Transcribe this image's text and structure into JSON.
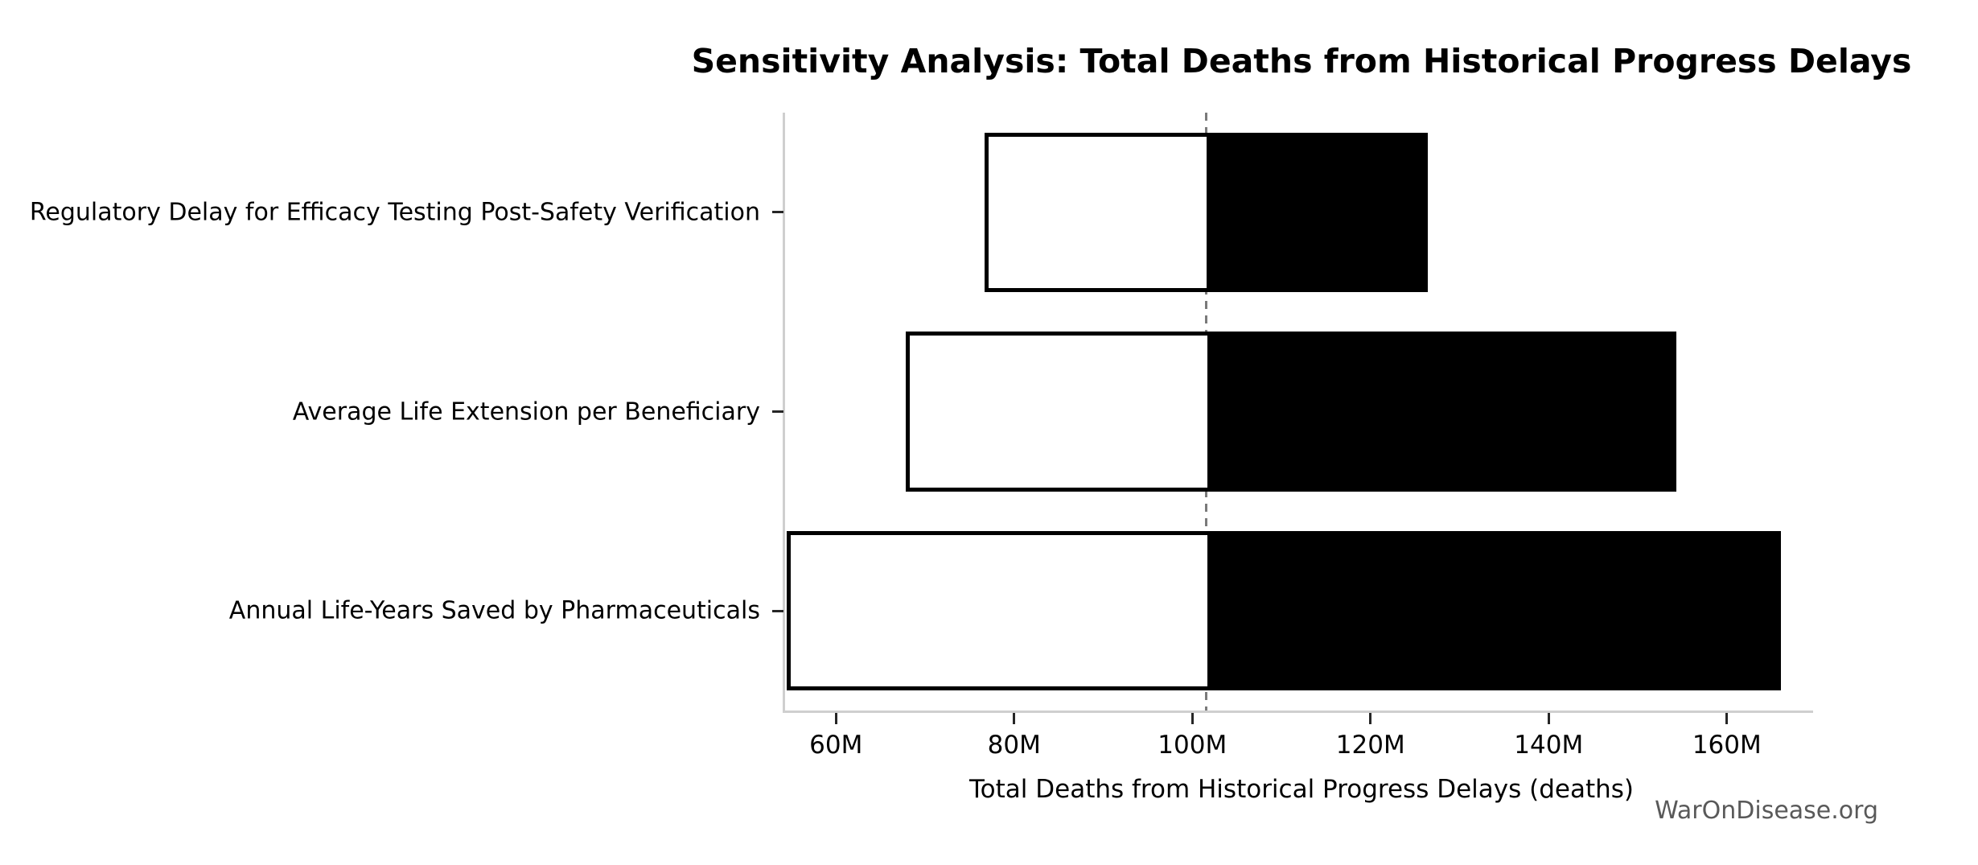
{
  "title": "Sensitivity Analysis: Total Deaths from Historical Progress Delays",
  "x_axis_label": "Total Deaths from Historical Progress Delays (deaths)",
  "watermark": "WarOnDisease.org",
  "colors": {
    "low_bar_fill": "#ffffff",
    "high_bar_fill": "#000000",
    "bar_border": "#000000",
    "baseline_line": "#7a7a7a",
    "spine": "#cfcfcf",
    "watermark_text": "#595959"
  },
  "chart_data": {
    "type": "bar",
    "subtype": "tornado-sensitivity",
    "orientation": "horizontal",
    "title": "Sensitivity Analysis: Total Deaths from Historical Progress Delays",
    "xlabel": "Total Deaths from Historical Progress Delays (deaths)",
    "ylabel": "",
    "categories": [
      "Regulatory Delay for Efficacy Testing Post-Safety Verification",
      "Average Life Extension per Beneficiary",
      "Annual Life-Years Saved by Pharmaceuticals"
    ],
    "series": [
      {
        "name": "low_value_millions",
        "values": [
          76.7,
          67.8,
          54.5
        ]
      },
      {
        "name": "high_value_millions",
        "values": [
          126.4,
          154.3,
          166.1
        ]
      }
    ],
    "baseline_value_millions": 101.6,
    "value_unit": "M deaths",
    "x_tick_values": [
      60,
      80,
      100,
      120,
      140,
      160
    ],
    "x_tick_labels": [
      "60M",
      "80M",
      "100M",
      "120M",
      "140M",
      "160M"
    ],
    "xlim": [
      54.2,
      169.5
    ],
    "grid": false,
    "legend_position": "none"
  }
}
